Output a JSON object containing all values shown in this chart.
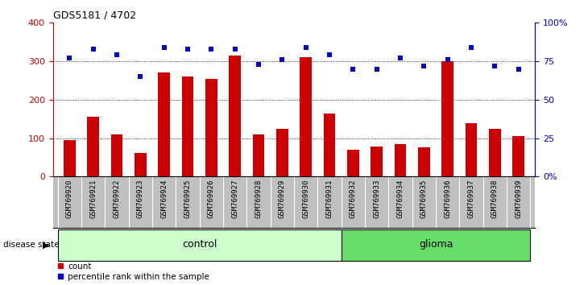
{
  "title": "GDS5181 / 4702",
  "samples": [
    "GSM769920",
    "GSM769921",
    "GSM769922",
    "GSM769923",
    "GSM769924",
    "GSM769925",
    "GSM769926",
    "GSM769927",
    "GSM769928",
    "GSM769929",
    "GSM769930",
    "GSM769931",
    "GSM769932",
    "GSM769933",
    "GSM769934",
    "GSM769935",
    "GSM769936",
    "GSM769937",
    "GSM769938",
    "GSM769939"
  ],
  "counts": [
    95,
    155,
    110,
    62,
    270,
    260,
    255,
    315,
    110,
    125,
    310,
    165,
    70,
    78,
    85,
    76,
    300,
    140,
    125,
    105
  ],
  "percentiles": [
    77,
    83,
    79,
    65,
    84,
    83,
    83,
    83,
    73,
    76,
    84,
    79,
    70,
    70,
    77,
    72,
    76,
    84,
    72,
    70
  ],
  "n_control": 12,
  "n_glioma": 8,
  "bar_color": "#cc0000",
  "dot_color": "#0000cc",
  "left_ylim": [
    0,
    400
  ],
  "right_ylim": [
    0,
    100
  ],
  "left_yticks": [
    0,
    100,
    200,
    300,
    400
  ],
  "right_yticks": [
    0,
    25,
    50,
    75,
    100
  ],
  "right_yticklabels": [
    "0%",
    "25",
    "50",
    "75",
    "100%"
  ],
  "left_ycolor": "#cc0000",
  "right_ycolor": "#0000cc",
  "grid_lines": [
    100,
    200,
    300
  ],
  "control_label": "control",
  "glioma_label": "glioma",
  "disease_state_label": "disease state",
  "legend_count_label": "count",
  "legend_percentile_label": "percentile rank within the sample",
  "control_color": "#ccffcc",
  "glioma_color": "#66dd66",
  "xtick_bg_color": "#c0c0c0",
  "plot_bg_color": "#ffffff"
}
